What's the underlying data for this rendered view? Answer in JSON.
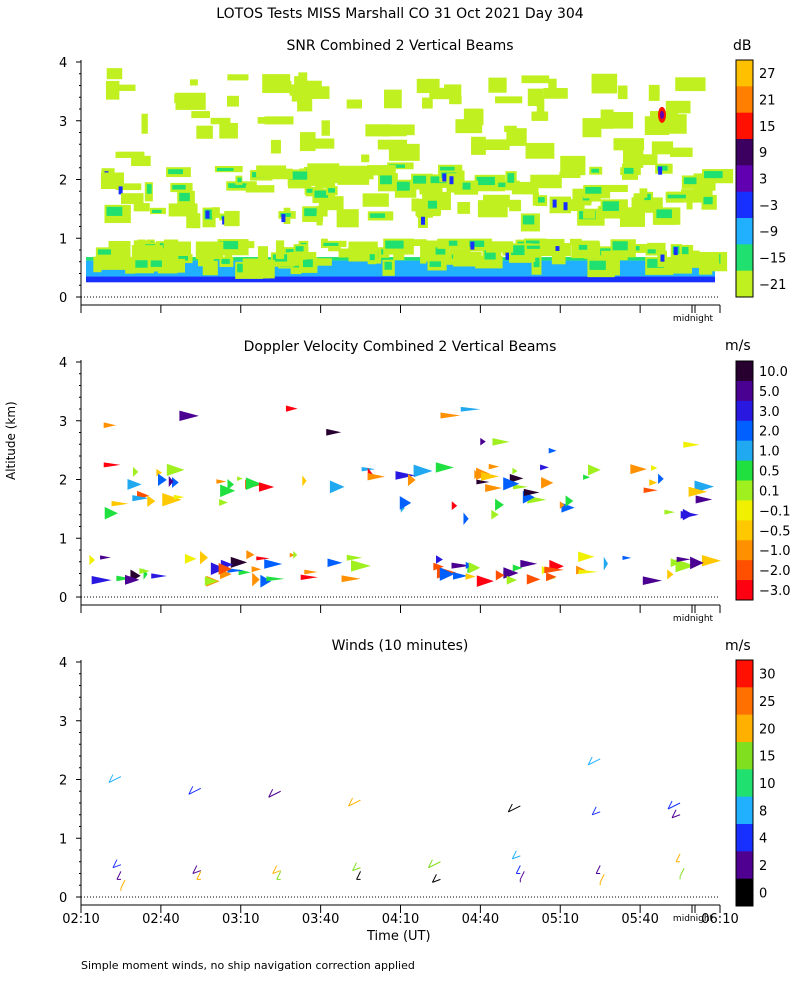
{
  "figure": {
    "title": "LOTOS Tests MISS Marshall CO  31 Oct 2021 Day 304",
    "footnote": "Simple moment winds, no ship navigation correction applied",
    "x_axis_label": "Time (UT)",
    "y_axis_label": "Altitude (km)"
  },
  "chart_data": [
    {
      "type": "heatmap",
      "title": "SNR Combined 2 Vertical Beams",
      "ylim": [
        0,
        4
      ],
      "yticks": [
        "0",
        "1",
        "2",
        "3",
        "4"
      ],
      "midnight_label": "midnight",
      "colorbar": {
        "unit": "dB",
        "labels": [
          "27",
          "21",
          "15",
          "9",
          "3",
          "−3",
          "−9",
          "−15",
          "−21"
        ],
        "colors": [
          "#ffc000",
          "#ff8000",
          "#ff1000",
          "#3c0060",
          "#6000b0",
          "#1830ff",
          "#20b0ff",
          "#20e070",
          "#c0f020"
        ]
      },
      "bands": [
        {
          "altitude_km": [
            0.25,
            0.35
          ],
          "level_db": -3,
          "coverage": "continuous"
        },
        {
          "altitude_km": [
            0.35,
            0.6
          ],
          "level_db": -9,
          "coverage": "continuous"
        },
        {
          "altitude_km": [
            0.6,
            1.0
          ],
          "level_db": -15,
          "coverage": "broken"
        },
        {
          "altitude_km": [
            1.4,
            2.3
          ],
          "level_db": -15,
          "coverage": "broken"
        },
        {
          "altitude_km": [
            2.3,
            3.9
          ],
          "level_db": -21,
          "coverage": "sparse"
        }
      ]
    },
    {
      "type": "heatmap",
      "title": "Doppler Velocity Combined 2 Vertical Beams",
      "ylim": [
        0,
        4
      ],
      "yticks": [
        "0",
        "1",
        "2",
        "3",
        "4"
      ],
      "midnight_label": "midnight",
      "colorbar": {
        "unit": "m/s",
        "labels": [
          "10.0",
          "5.0",
          "3.0",
          "2.0",
          "1.0",
          "0.5",
          "0.1",
          "−0.1",
          "−0.5",
          "−1.0",
          "−2.0",
          "−3.0"
        ],
        "colors": [
          "#280030",
          "#4a0090",
          "#2818e0",
          "#0060ff",
          "#20a8f0",
          "#20e040",
          "#a0f020",
          "#f0f000",
          "#ffc800",
          "#ff9000",
          "#ff5000",
          "#ff0010"
        ]
      }
    },
    {
      "type": "scatter",
      "title": "Winds (10 minutes)",
      "ylim": [
        0,
        4
      ],
      "yticks": [
        "0",
        "1",
        "2",
        "3",
        "4"
      ],
      "midnight_label": "midnight",
      "xticks": [
        "02:10",
        "02:40",
        "03:10",
        "03:40",
        "04:10",
        "04:40",
        "05:10",
        "05:40",
        "06:10"
      ],
      "colorbar": {
        "unit": "m/s",
        "labels": [
          "30",
          "25",
          "20",
          "15",
          "10",
          "8",
          "4",
          "2",
          "0"
        ],
        "colors": [
          "#ff1000",
          "#ff7000",
          "#ffb000",
          "#80e020",
          "#20e070",
          "#20b0ff",
          "#1830ff",
          "#500090",
          "#000000"
        ]
      },
      "barb_times_utc": [
        "02:25",
        "02:55",
        "03:25",
        "03:55",
        "04:25",
        "04:55",
        "05:25",
        "05:55"
      ],
      "barbs_km": [
        [
          2.05,
          0.55,
          0.3,
          0.1
        ],
        [
          1.85,
          0.45,
          0.3
        ],
        [
          1.8,
          0.45,
          0.3
        ],
        [
          1.65,
          0.5,
          0.3
        ],
        [
          0.6,
          0.3
        ],
        [
          1.55,
          0.7,
          0.4,
          0.25
        ],
        [
          2.35,
          1.45,
          0.4,
          0.2
        ],
        [
          1.6,
          1.4,
          0.6,
          0.3
        ]
      ]
    }
  ]
}
